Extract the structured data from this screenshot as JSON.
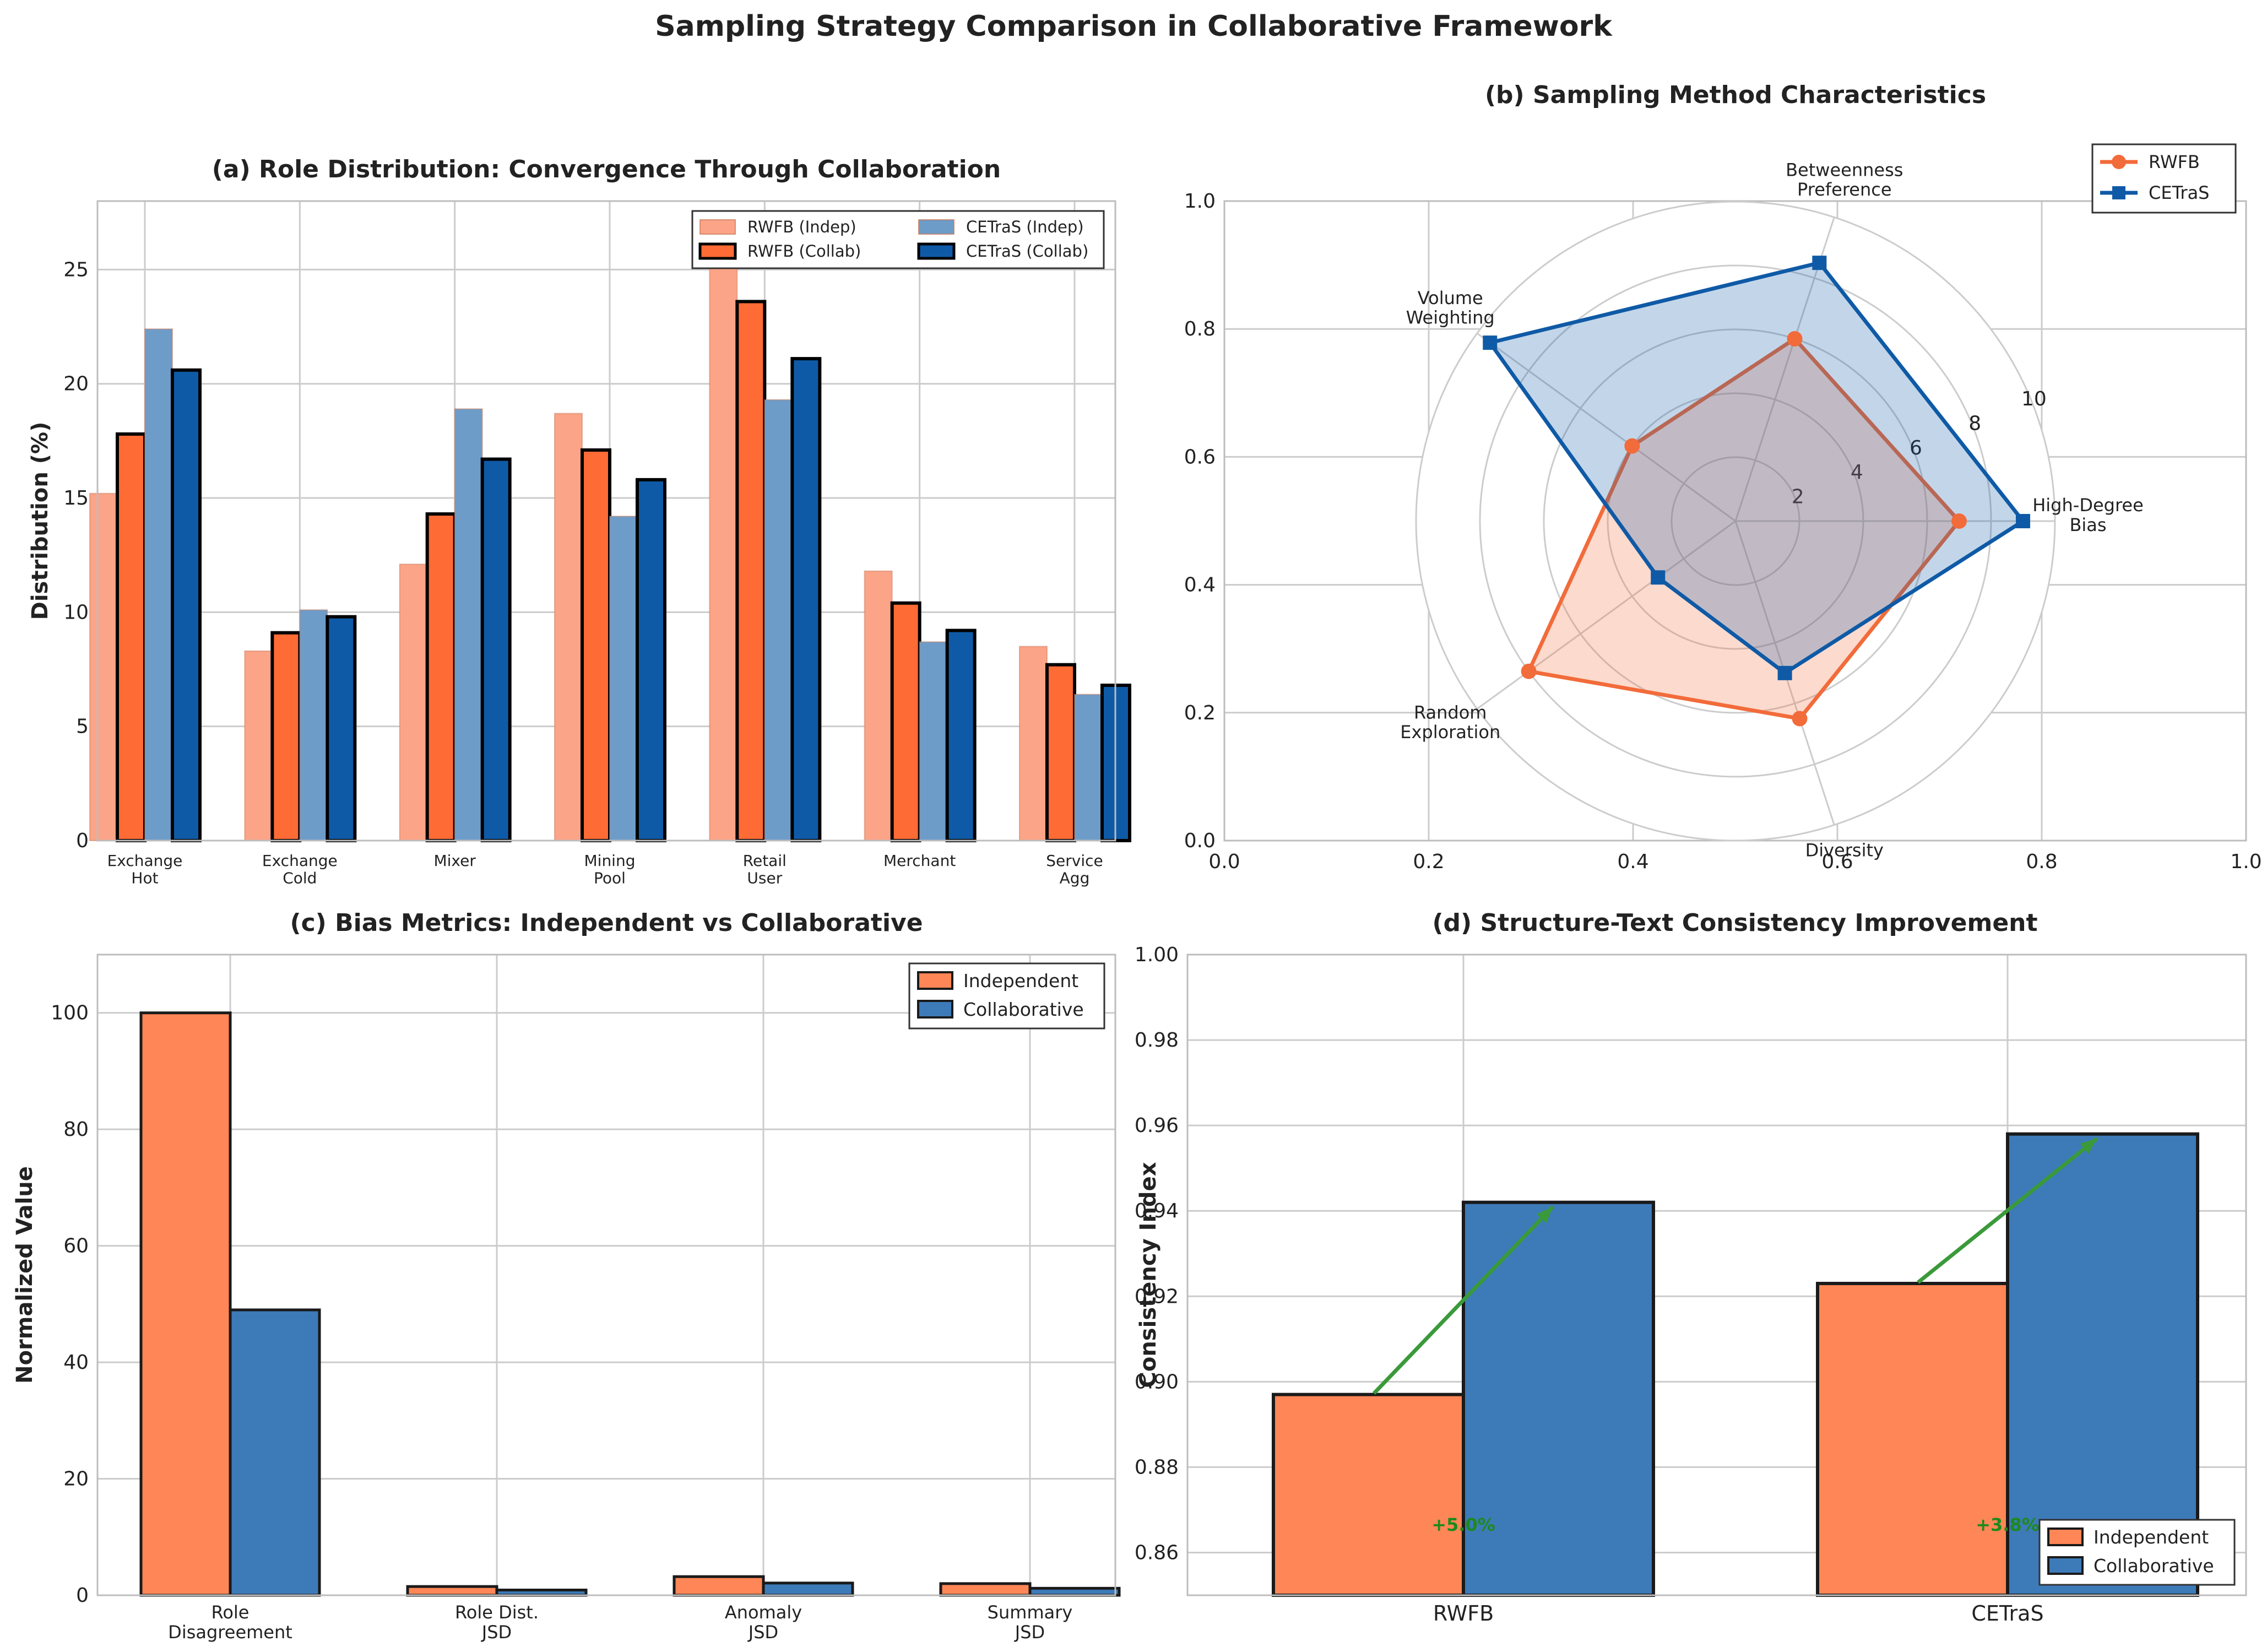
{
  "figure": {
    "title": "Sampling Strategy Comparison in Collaborative Framework"
  },
  "chart_data": [
    {
      "id": "a",
      "type": "bar",
      "title": "(a) Role Distribution: Convergence Through Collaboration",
      "xlabel": "",
      "ylabel": "Distribution (%)",
      "ylim": [
        0,
        28
      ],
      "yticks": [
        0,
        5,
        10,
        15,
        20,
        25
      ],
      "categories": [
        "Exchange\nHot",
        "Exchange\nCold",
        "Mixer",
        "Mining\nPool",
        "Retail\nUser",
        "Merchant",
        "Service\nAgg"
      ],
      "series": [
        {
          "name": "RWFB (Indep)",
          "color": "#fca487",
          "outline": false,
          "values": [
            15.2,
            8.3,
            12.1,
            18.7,
            25.4,
            11.8,
            8.5
          ]
        },
        {
          "name": "RWFB (Collab)",
          "color": "#ff6b35",
          "outline": true,
          "values": [
            17.8,
            9.1,
            14.3,
            17.1,
            23.6,
            10.4,
            7.7
          ]
        },
        {
          "name": "CETraS (Indep)",
          "color": "#6e9cc8",
          "outline": false,
          "values": [
            22.4,
            10.1,
            18.9,
            14.2,
            19.3,
            8.7,
            6.4
          ]
        },
        {
          "name": "CETraS (Collab)",
          "color": "#0f5aa6",
          "outline": true,
          "values": [
            20.6,
            9.8,
            16.7,
            15.8,
            21.1,
            9.2,
            6.8
          ]
        }
      ],
      "legend": "top-right",
      "grid": true
    },
    {
      "id": "b",
      "type": "radar",
      "title": "(b) Sampling Method Characteristics",
      "axes": [
        "High-Degree\nBias",
        "Betweenness\nPreference",
        "Volume\nWeighting",
        "Random\nExploration",
        "Diversity"
      ],
      "rticks": [
        2,
        4,
        6,
        8,
        10
      ],
      "rmax": 10,
      "cartesian_ticks": {
        "x": [
          0.0,
          0.2,
          0.4,
          0.6,
          0.8,
          1.0
        ],
        "y": [
          0.0,
          0.2,
          0.4,
          0.6,
          0.8,
          1.0
        ]
      },
      "series": [
        {
          "name": "RWFB",
          "color": "#f26b3a",
          "marker": "circle",
          "values": [
            7,
            6,
            4,
            8,
            6.5
          ]
        },
        {
          "name": "CETraS",
          "color": "#0f5aa6",
          "marker": "square",
          "values": [
            9,
            8.5,
            9.5,
            3,
            5
          ]
        }
      ],
      "legend": "top-right"
    },
    {
      "id": "c",
      "type": "bar",
      "title": "(c) Bias Metrics: Independent vs Collaborative",
      "xlabel": "",
      "ylabel": "Normalized Value",
      "ylim": [
        0,
        110
      ],
      "yticks": [
        0,
        20,
        40,
        60,
        80,
        100
      ],
      "categories": [
        "Role\nDisagreement",
        "Role Dist.\nJSD",
        "Anomaly\nJSD",
        "Summary\nJSD"
      ],
      "series": [
        {
          "name": "Independent",
          "color": "#ff8656",
          "values": [
            100,
            1.5,
            3.2,
            2.0
          ]
        },
        {
          "name": "Collaborative",
          "color": "#3d7ab8",
          "values": [
            49,
            0.9,
            2.1,
            1.2
          ]
        }
      ],
      "legend": "top-right",
      "grid": true
    },
    {
      "id": "d",
      "type": "bar",
      "title": "(d) Structure-Text Consistency Improvement",
      "xlabel": "",
      "ylabel": "Consistency Index",
      "ylim": [
        0.85,
        1.0
      ],
      "yticks": [
        "0.86",
        "0.88",
        "0.90",
        "0.92",
        "0.94",
        "0.96",
        "0.98",
        "1.00"
      ],
      "categories": [
        "RWFB",
        "CETraS"
      ],
      "series": [
        {
          "name": "Independent",
          "color": "#ff8656",
          "values": [
            0.897,
            0.923
          ]
        },
        {
          "name": "Collaborative",
          "color": "#3d7ab8",
          "values": [
            0.942,
            0.958
          ]
        }
      ],
      "annotations": [
        "+5.0%",
        "+3.8%"
      ],
      "arrow_color": "#3a9a3a",
      "legend": "bottom-right",
      "grid": true
    }
  ]
}
